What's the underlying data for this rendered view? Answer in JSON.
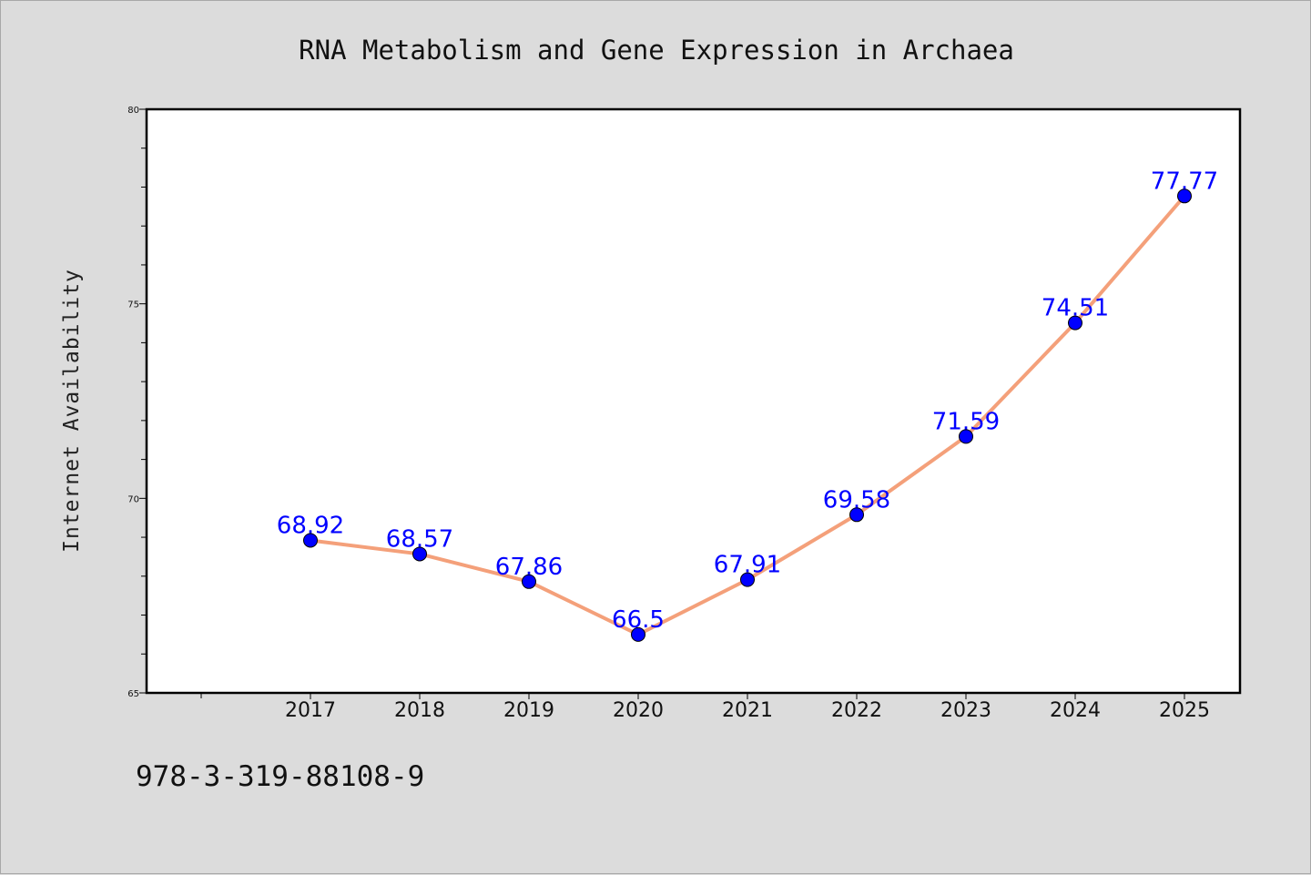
{
  "chart_data": {
    "type": "line",
    "title": "RNA Metabolism and Gene Expression in Archaea",
    "xlabel": "",
    "ylabel": "Internet Availability",
    "categories": [
      "2017",
      "2018",
      "2019",
      "2020",
      "2021",
      "2022",
      "2023",
      "2024",
      "2025"
    ],
    "series": [
      {
        "values": [
          68.92,
          68.57,
          67.86,
          66.5,
          67.91,
          69.58,
          71.59,
          74.51,
          77.77
        ],
        "labels": [
          "68.92",
          "68.57",
          "67.86",
          "66.5",
          "67.91",
          "69.58",
          "71.59",
          "74.51",
          "77.77"
        ]
      }
    ],
    "ylim": [
      65,
      80
    ],
    "yticks": [
      "65",
      "70",
      "75",
      "80"
    ],
    "grid": false,
    "legend": "none",
    "colors": {
      "line": "#f4a07a",
      "marker": "#0000ff",
      "label": "#0000ff",
      "background": "#dcdcdc",
      "plot_bg": "#ffffff"
    }
  },
  "footer": {
    "isbn": "978-3-319-88108-9"
  }
}
